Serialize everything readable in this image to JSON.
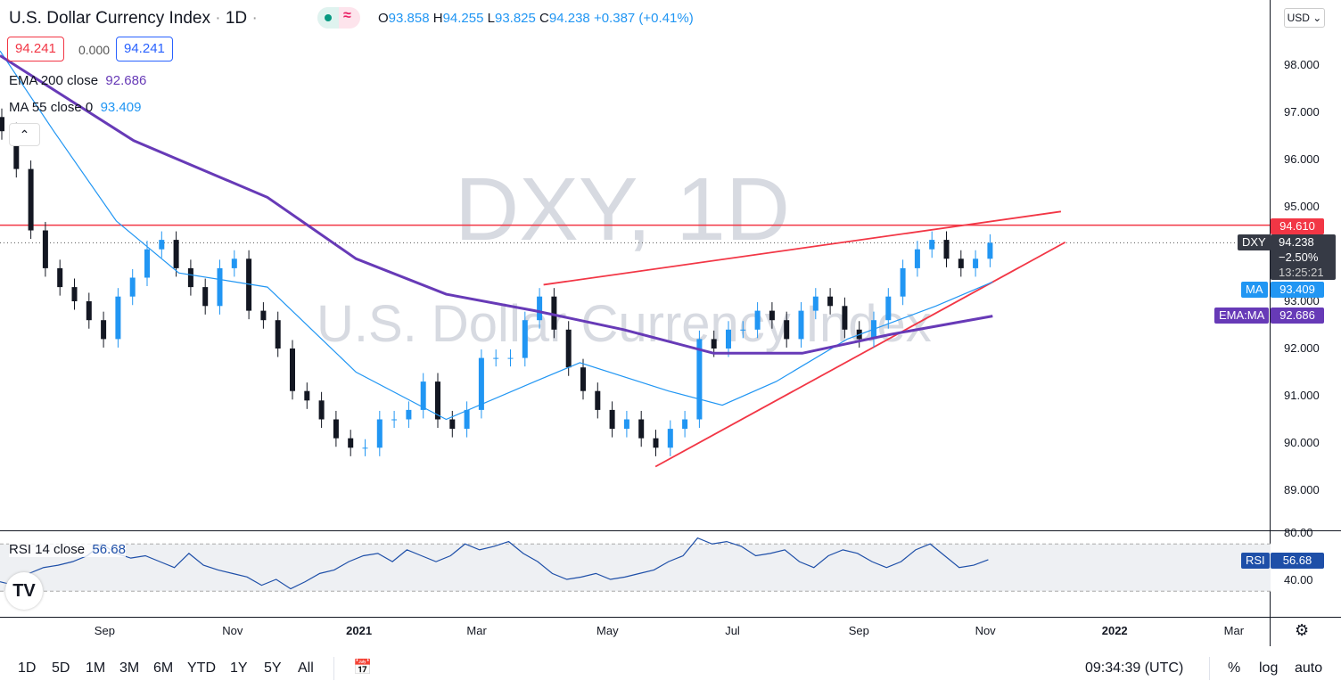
{
  "header": {
    "title": "U.S. Dollar Currency Index",
    "interval": "1D",
    "open_label": "O",
    "open": "93.858",
    "high_label": "H",
    "high": "94.255",
    "low_label": "L",
    "low": "93.825",
    "close_label": "C",
    "close": "94.238",
    "change": "+0.387 (+0.41%)",
    "sell_price": "94.241",
    "spread": "0.000",
    "buy_price": "94.241",
    "currency": "USD"
  },
  "legend": {
    "ema_label": "EMA 200 close",
    "ema_value": "92.686",
    "ma_label": "MA 55 close 0",
    "ma_value": "93.409",
    "rsi_label": "RSI 14 close",
    "rsi_value": "56.68"
  },
  "watermark": {
    "symbol": "DXY, 1D",
    "name": "U.S. Dollar Currency Index"
  },
  "tags": {
    "resistance": "94.610",
    "symbol": "DXY",
    "price": "94.238",
    "pct": "−2.50%",
    "countdown": "13:25:21",
    "ma_name": "MA",
    "ma_value": "93.409",
    "ema_name": "EMA:MA",
    "ema_value": "92.686",
    "rsi_name": "RSI",
    "rsi_value": "56.68"
  },
  "bottom_bar": {
    "timeframes": [
      "1D",
      "5D",
      "1M",
      "3M",
      "6M",
      "YTD",
      "1Y",
      "5Y",
      "All"
    ],
    "time": "09:34:39 (UTC)",
    "percent": "%",
    "log": "log",
    "auto": "auto"
  },
  "colors": {
    "up": "#2196f3",
    "down": "#131722",
    "ma": "#2196f3",
    "ema": "#673ab7",
    "trend": "#f23645",
    "rsi": "#1e4fa8"
  },
  "chart_data": [
    {
      "type": "candlestick",
      "title": "U.S. Dollar Currency Index, 1D",
      "x_unit": "week index from mid-Jul 2020",
      "ylim": [
        88.5,
        98.6
      ],
      "y_ticks": [
        "98.000",
        "97.000",
        "96.000",
        "95.000",
        "94.000",
        "93.000",
        "92.000",
        "91.000",
        "90.000",
        "89.000"
      ],
      "x_ticks": [
        {
          "label": "Sep",
          "w": 7.2
        },
        {
          "label": "Nov",
          "w": 16
        },
        {
          "label": "2021",
          "w": 24.7,
          "bold": true
        },
        {
          "label": "Mar",
          "w": 32.8
        },
        {
          "label": "May",
          "w": 41.8
        },
        {
          "label": "Jul",
          "w": 50.4
        },
        {
          "label": "Sep",
          "w": 59.1
        },
        {
          "label": "Nov",
          "w": 67.8
        },
        {
          "label": "2022",
          "w": 76.7,
          "bold": true
        },
        {
          "label": "Mar",
          "w": 84.9
        }
      ],
      "closes": [
        96.6,
        95.8,
        94.5,
        93.7,
        93.3,
        93.0,
        92.6,
        92.2,
        93.1,
        93.5,
        94.1,
        94.3,
        93.7,
        93.3,
        92.9,
        93.7,
        93.9,
        92.8,
        92.6,
        92.0,
        91.1,
        90.9,
        90.5,
        90.1,
        89.9,
        89.9,
        90.5,
        90.5,
        90.7,
        91.3,
        90.5,
        90.3,
        90.7,
        91.8,
        91.8,
        91.8,
        92.6,
        93.1,
        92.4,
        91.6,
        91.1,
        90.7,
        90.3,
        90.5,
        90.1,
        89.9,
        90.3,
        90.5,
        92.2,
        92.0,
        92.4,
        92.4,
        92.8,
        92.6,
        92.2,
        92.8,
        93.1,
        92.9,
        92.4,
        92.2,
        92.6,
        93.1,
        93.7,
        94.1,
        94.3,
        93.9,
        93.7,
        93.9,
        94.238
      ],
      "ma55": [
        [
          0,
          98.3
        ],
        [
          3.7,
          96.6
        ],
        [
          8,
          94.7
        ],
        [
          12.3,
          93.6
        ],
        [
          18.4,
          93.3
        ],
        [
          24.5,
          91.5
        ],
        [
          30.7,
          90.5
        ],
        [
          36.8,
          91.3
        ],
        [
          39.9,
          91.7
        ],
        [
          46,
          91.1
        ],
        [
          49.7,
          90.8
        ],
        [
          53.4,
          91.3
        ],
        [
          58.3,
          92.2
        ],
        [
          64.4,
          92.9
        ],
        [
          68.3,
          93.409
        ]
      ],
      "ema200": [
        [
          0,
          98.2
        ],
        [
          9.2,
          96.4
        ],
        [
          18.4,
          95.2
        ],
        [
          24.5,
          93.9
        ],
        [
          30.7,
          93.15
        ],
        [
          36.8,
          92.8
        ],
        [
          42.9,
          92.4
        ],
        [
          49.1,
          91.9
        ],
        [
          55.2,
          91.9
        ],
        [
          61.3,
          92.3
        ],
        [
          68.3,
          92.686
        ]
      ],
      "lines": {
        "horizontal": 94.61,
        "upper": [
          [
            37.4,
            93.35
          ],
          [
            73,
            94.9
          ]
        ],
        "lower": [
          [
            45.1,
            89.5
          ],
          [
            73.3,
            94.25
          ]
        ]
      }
    },
    {
      "type": "line",
      "title": "RSI 14 close",
      "ylim": [
        20,
        85
      ],
      "y_ticks": [
        "80.00",
        "40.00"
      ],
      "bands": [
        30,
        70
      ],
      "values": [
        38,
        35,
        45,
        50,
        52,
        55,
        60,
        70,
        62,
        58,
        60,
        55,
        50,
        62,
        52,
        48,
        45,
        42,
        35,
        40,
        32,
        38,
        45,
        48,
        55,
        60,
        62,
        55,
        65,
        60,
        55,
        60,
        70,
        65,
        68,
        72,
        62,
        55,
        45,
        40,
        42,
        45,
        40,
        42,
        45,
        48,
        55,
        60,
        75,
        70,
        72,
        68,
        60,
        62,
        65,
        55,
        50,
        60,
        65,
        62,
        55,
        50,
        55,
        65,
        70,
        60,
        50,
        52,
        56.68
      ]
    }
  ]
}
